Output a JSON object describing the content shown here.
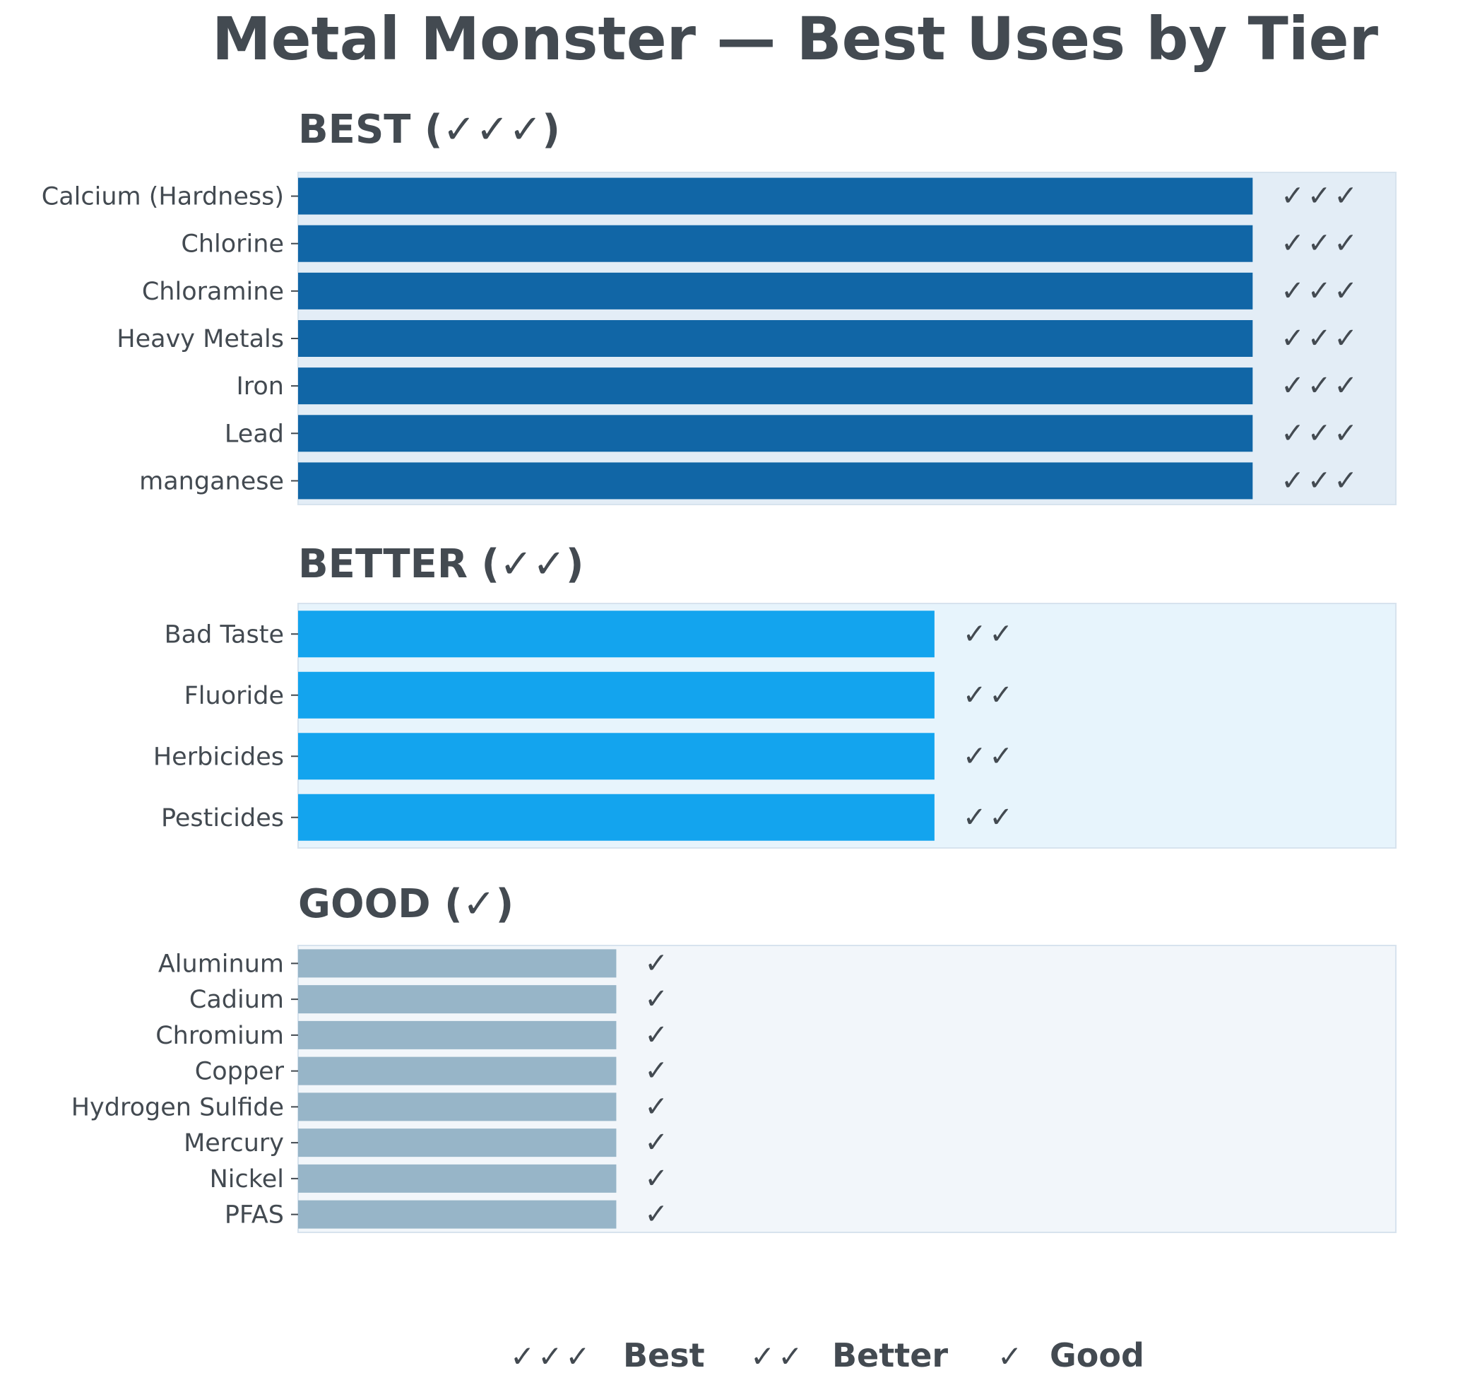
{
  "chart_data": {
    "type": "bar",
    "orientation": "horizontal",
    "title": "Metal Monster — Best Uses by Tier",
    "xlim": [
      0,
      3.45
    ],
    "grid": false,
    "legend_placement": "bottom-center",
    "panels": [
      {
        "title": "BEST (✓✓✓)",
        "tier": "best",
        "categories": [
          "Calcium (Hardness)",
          "Chlorine",
          "Chloramine",
          "Heavy Metals",
          "Iron",
          "Lead",
          "manganese"
        ],
        "values": [
          3,
          3,
          3,
          3,
          3,
          3,
          3
        ],
        "mark_label": "✓✓✓",
        "bar_color": "#1166a6",
        "panel_bg": "#e3edf6"
      },
      {
        "title": "BETTER (✓✓)",
        "tier": "better",
        "categories": [
          "Bad Taste",
          "Fluoride",
          "Herbicides",
          "Pesticides"
        ],
        "values": [
          2,
          2,
          2,
          2
        ],
        "mark_label": "✓✓",
        "bar_color": "#13a4ee",
        "panel_bg": "#e7f4fc"
      },
      {
        "title": "GOOD (✓)",
        "tier": "good",
        "categories": [
          "Aluminum",
          "Cadium",
          "Chromium",
          "Copper",
          "Hydrogen Sulfide",
          "Mercury",
          "Nickel",
          "PFAS"
        ],
        "values": [
          1,
          1,
          1,
          1,
          1,
          1,
          1,
          1
        ],
        "mark_label": "✓",
        "bar_color": "#97b5c8",
        "panel_bg": "#f2f6fa"
      }
    ],
    "legend": [
      {
        "symbol": "✓✓✓",
        "label": "Best"
      },
      {
        "symbol": "✓✓",
        "label": "Better"
      },
      {
        "symbol": "✓",
        "label": "Good"
      }
    ]
  }
}
